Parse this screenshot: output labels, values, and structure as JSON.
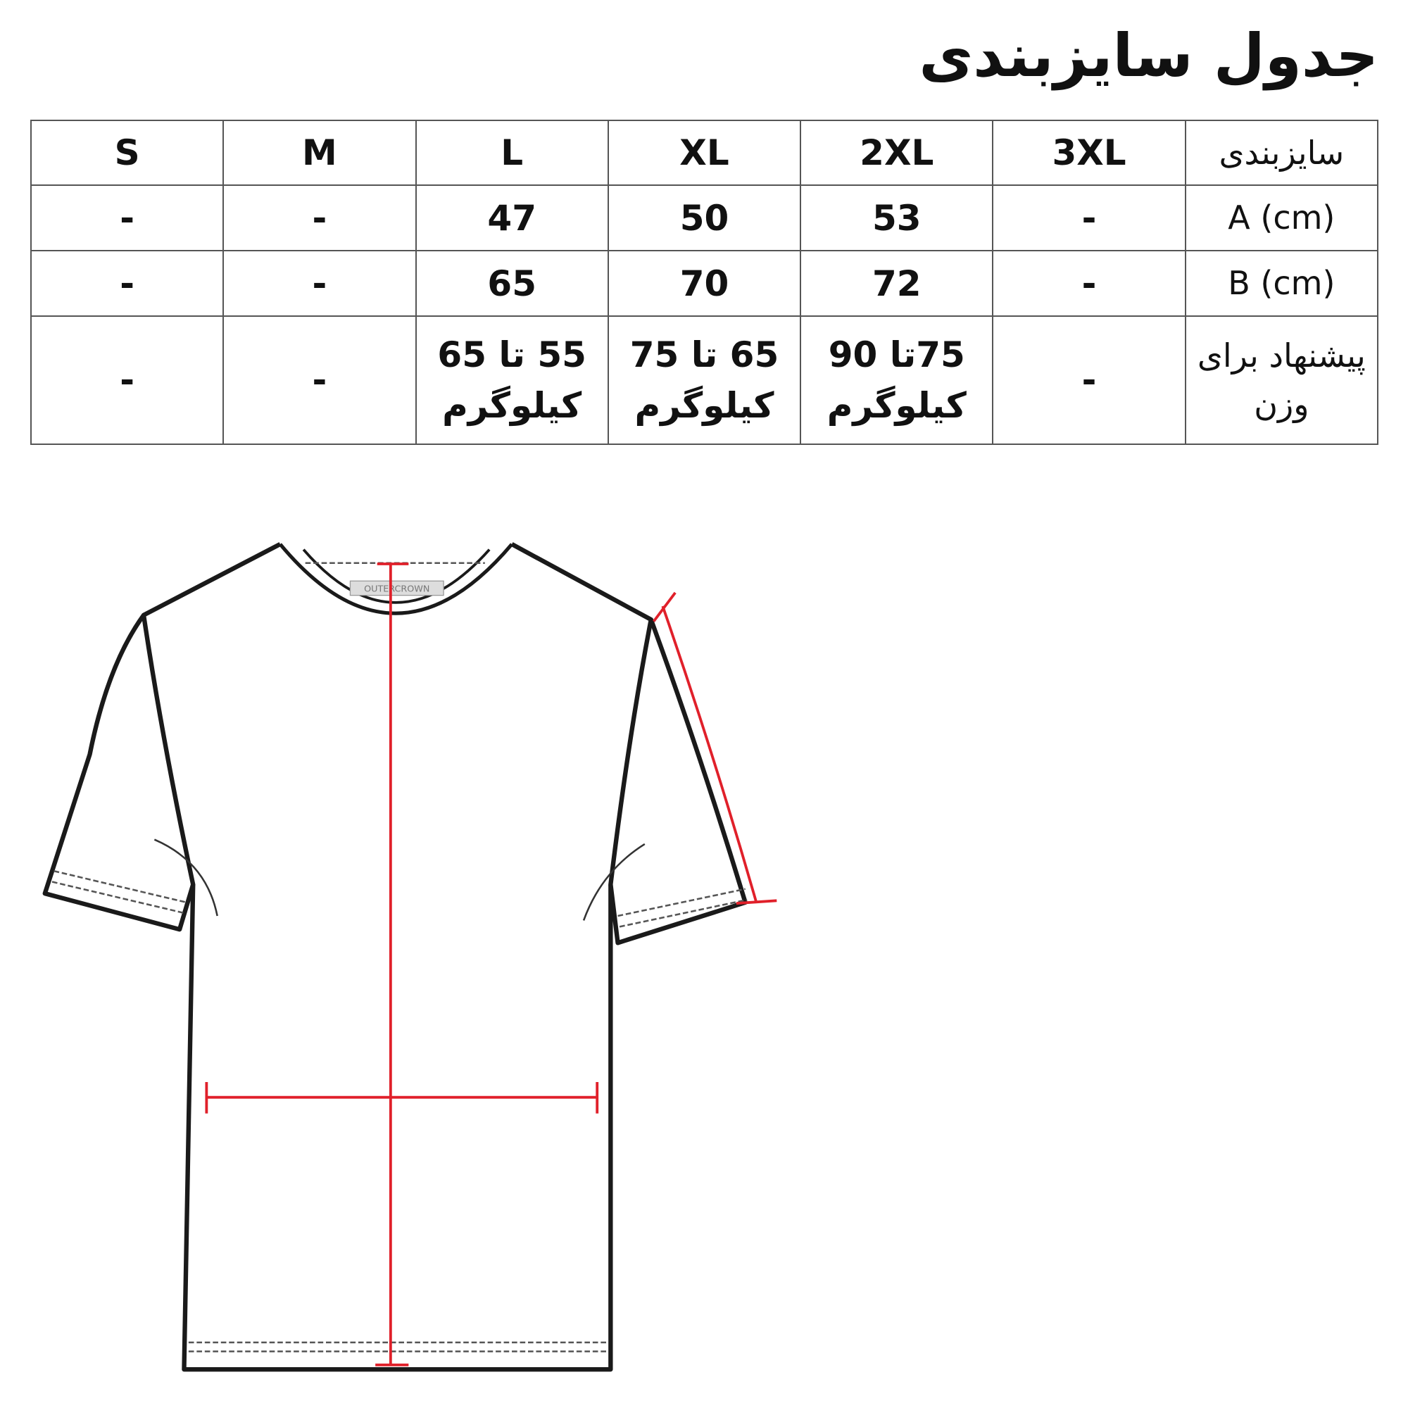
{
  "title": "جدول سایزبندی",
  "table": {
    "header": {
      "label": "سایزبندی",
      "sizes": [
        "3XL",
        "2XL",
        "XL",
        "L",
        "M",
        "S"
      ]
    },
    "rows": [
      {
        "label": "A (cm)",
        "values": [
          "-",
          "53",
          "50",
          "47",
          "-",
          "-"
        ]
      },
      {
        "label": "B (cm)",
        "values": [
          "-",
          "72",
          "70",
          "65",
          "-",
          "-"
        ]
      },
      {
        "label": "پیشنهاد برای وزن",
        "values": [
          "-",
          "75تا 90 کیلوگرم",
          "65 تا 75 کیلوگرم",
          "55 تا 65 کیلوگرم",
          "-",
          "-"
        ]
      }
    ]
  },
  "diagram": {
    "neck_label": "OUTERCROWN",
    "measure_color": "#e0202a",
    "outline_color": "#1a1a1a"
  }
}
